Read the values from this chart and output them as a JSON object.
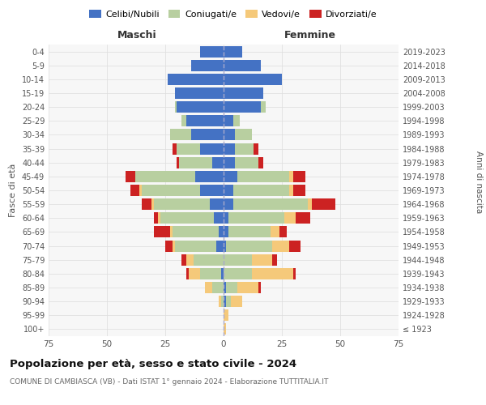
{
  "age_groups": [
    "100+",
    "95-99",
    "90-94",
    "85-89",
    "80-84",
    "75-79",
    "70-74",
    "65-69",
    "60-64",
    "55-59",
    "50-54",
    "45-49",
    "40-44",
    "35-39",
    "30-34",
    "25-29",
    "20-24",
    "15-19",
    "10-14",
    "5-9",
    "0-4"
  ],
  "birth_years": [
    "≤ 1923",
    "1924-1928",
    "1929-1933",
    "1934-1938",
    "1939-1943",
    "1944-1948",
    "1949-1953",
    "1954-1958",
    "1959-1963",
    "1964-1968",
    "1969-1973",
    "1974-1978",
    "1979-1983",
    "1984-1988",
    "1989-1993",
    "1994-1998",
    "1999-2003",
    "2004-2008",
    "2009-2013",
    "2014-2018",
    "2019-2023"
  ],
  "colors": {
    "celibe": "#4472c4",
    "coniugato": "#b8cfa0",
    "vedovo": "#f5c97a",
    "divorziato": "#cc2222"
  },
  "males": {
    "celibe": [
      0,
      0,
      0,
      0,
      1,
      0,
      3,
      2,
      4,
      6,
      10,
      12,
      5,
      10,
      14,
      16,
      20,
      21,
      24,
      14,
      10
    ],
    "coniugato": [
      0,
      0,
      1,
      5,
      9,
      13,
      18,
      20,
      23,
      24,
      25,
      26,
      14,
      10,
      9,
      2,
      1,
      0,
      0,
      0,
      0
    ],
    "vedovo": [
      0,
      0,
      1,
      3,
      5,
      3,
      1,
      1,
      1,
      1,
      1,
      0,
      0,
      0,
      0,
      0,
      0,
      0,
      0,
      0,
      0
    ],
    "divorziato": [
      0,
      0,
      0,
      0,
      1,
      2,
      3,
      7,
      2,
      4,
      4,
      4,
      1,
      2,
      0,
      0,
      0,
      0,
      0,
      0,
      0
    ]
  },
  "females": {
    "nubile": [
      0,
      0,
      1,
      1,
      0,
      0,
      1,
      2,
      2,
      4,
      4,
      6,
      5,
      5,
      5,
      4,
      16,
      17,
      25,
      16,
      8
    ],
    "coniugata": [
      0,
      0,
      2,
      5,
      12,
      12,
      20,
      18,
      24,
      32,
      24,
      22,
      10,
      8,
      7,
      3,
      2,
      0,
      0,
      0,
      0
    ],
    "vedova": [
      1,
      2,
      5,
      9,
      18,
      9,
      7,
      4,
      5,
      2,
      2,
      2,
      0,
      0,
      0,
      0,
      0,
      0,
      0,
      0,
      0
    ],
    "divorziata": [
      0,
      0,
      0,
      1,
      1,
      2,
      5,
      3,
      6,
      10,
      5,
      5,
      2,
      2,
      0,
      0,
      0,
      0,
      0,
      0,
      0
    ]
  },
  "xlim": 75,
  "title": "Popolazione per età, sesso e stato civile - 2024",
  "subtitle": "COMUNE DI CAMBIASCA (VB) - Dati ISTAT 1° gennaio 2024 - Elaborazione TUTTITALIA.IT",
  "ylabel_left": "Fasce di età",
  "ylabel_right": "Anni di nascita",
  "xlabel_maschi": "Maschi",
  "xlabel_femmine": "Femmine",
  "legend_labels": [
    "Celibi/Nubili",
    "Coniugati/e",
    "Vedovi/e",
    "Divorziati/e"
  ],
  "background_color": "#ffffff",
  "plot_bg": "#f7f7f7",
  "grid_color": "#dddddd"
}
